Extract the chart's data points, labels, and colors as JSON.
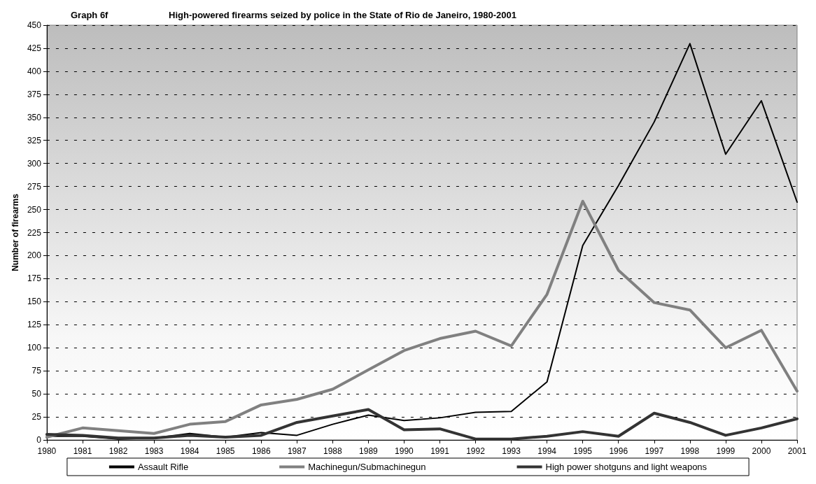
{
  "chart_data": {
    "type": "line",
    "title": "Graph 6f",
    "subtitle": "High-powered firearms seized by police in the State of Rio de Janeiro, 1980-2001",
    "ylabel": "Number of firearms",
    "categories": [
      "1980",
      "1981",
      "1982",
      "1983",
      "1984",
      "1985",
      "1986",
      "1987",
      "1988",
      "1989",
      "1990",
      "1991",
      "1992",
      "1993",
      "1994",
      "1995",
      "1996",
      "1997",
      "1998",
      "1999",
      "2000",
      "2001"
    ],
    "series": [
      {
        "name": "Assault Rifle",
        "color": "#000000",
        "values": [
          4,
          4,
          1,
          2,
          7,
          3,
          8,
          5,
          17,
          27,
          21,
          24,
          30,
          31,
          63,
          211,
          276,
          345,
          430,
          310,
          368,
          258
        ]
      },
      {
        "name": "Machinegun/Submachinegun",
        "color": "#808080",
        "values": [
          3,
          13,
          10,
          7,
          17,
          20,
          38,
          44,
          55,
          76,
          97,
          110,
          118,
          102,
          158,
          259,
          184,
          149,
          141,
          100,
          119,
          53
        ]
      },
      {
        "name": "High power shotguns and light weapons",
        "color": "#333333",
        "values": [
          6,
          5,
          2,
          2,
          5,
          3,
          5,
          19,
          26,
          33,
          11,
          12,
          1,
          1,
          4,
          9,
          4,
          29,
          19,
          5,
          13,
          23
        ]
      }
    ],
    "ylim": [
      0,
      450
    ],
    "yticks": [
      0,
      25,
      50,
      75,
      100,
      125,
      150,
      175,
      200,
      225,
      250,
      275,
      300,
      325,
      350,
      375,
      400,
      425,
      450
    ],
    "grid": "y",
    "legend": "bottom",
    "marker": "none",
    "line_style": "solid"
  }
}
